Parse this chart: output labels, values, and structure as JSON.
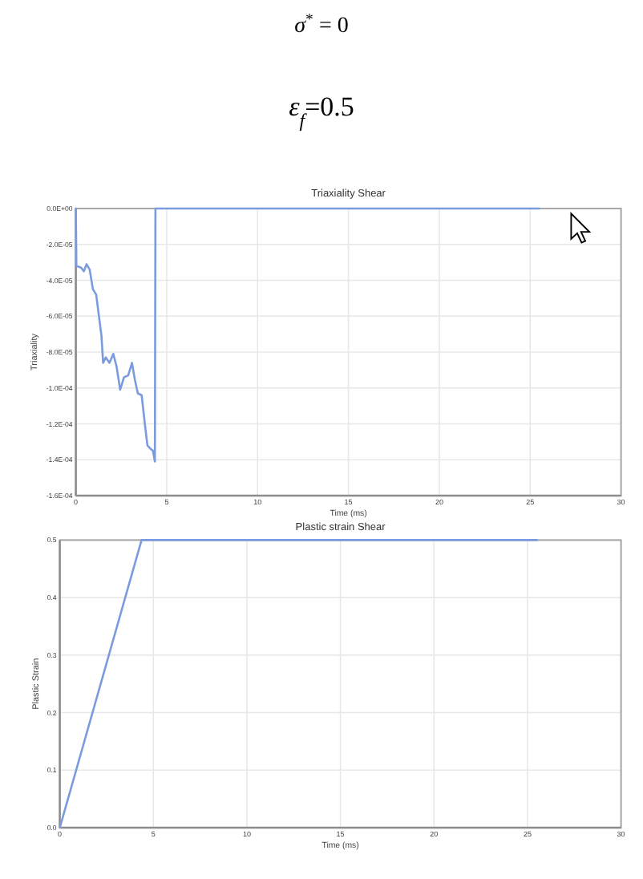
{
  "chart_data": [
    {
      "type": "line",
      "title": "Triaxiality Shear",
      "xlabel": "Time (ms)",
      "ylabel": "Triaxiality",
      "annotations": [
        "σ$^{*}$ = 0",
        "ε$_{f}$=0.5"
      ],
      "x": [
        0,
        0.03,
        0.29,
        0.44,
        0.59,
        0.76,
        0.94,
        1.12,
        1.41,
        1.5,
        1.65,
        1.85,
        2.06,
        2.24,
        2.44,
        2.65,
        2.88,
        3.09,
        3.24,
        3.41,
        3.62,
        3.82,
        3.94,
        4.12,
        4.24,
        4.35,
        4.38,
        25.5
      ],
      "series": [
        {
          "color": "#7b9be0",
          "values": [
            0,
            -3.2e-05,
            -3.3e-05,
            -3.5e-05,
            -3.1e-05,
            -3.4e-05,
            -4.5e-05,
            -4.8e-05,
            -7.1e-05,
            -8.6e-05,
            -8.3e-05,
            -8.6e-05,
            -8.1e-05,
            -8.8e-05,
            -0.000101,
            -9.4e-05,
            -9.3e-05,
            -8.6e-05,
            -9.5e-05,
            -0.000103,
            -0.000104,
            -0.000122,
            -0.000132,
            -0.000134,
            -0.000135,
            -0.000141,
            0,
            0
          ]
        }
      ],
      "xlim": [
        0,
        30
      ],
      "ylim": [
        -0.00016,
        0
      ],
      "xticks": [
        0,
        5,
        10,
        15,
        20,
        25,
        30
      ],
      "yticks": [
        {
          "value": 0,
          "label": "0.0E+00"
        },
        {
          "value": -2e-05,
          "label": "-2.0E-05"
        },
        {
          "value": -4e-05,
          "label": "-4.0E-05"
        },
        {
          "value": -6e-05,
          "label": "-6.0E-05"
        },
        {
          "value": -8e-05,
          "label": "-8.0E-05"
        },
        {
          "value": -0.0001,
          "label": "-1.0E-04"
        },
        {
          "value": -0.00012,
          "label": "-1.2E-04"
        },
        {
          "value": -0.00014,
          "label": "-1.4E-04"
        },
        {
          "value": -0.00016,
          "label": "-1.6E-04"
        }
      ],
      "grid": true
    },
    {
      "type": "line",
      "title": "Plastic strain Shear",
      "xlabel": "Time (ms)",
      "ylabel": "Plastic Strain",
      "x": [
        0,
        4.37,
        25.5
      ],
      "series": [
        {
          "color": "#7b9be0",
          "values": [
            0,
            0.5,
            0.5
          ]
        }
      ],
      "xlim": [
        0,
        30
      ],
      "ylim": [
        0,
        0.5
      ],
      "xticks": [
        0,
        5,
        10,
        15,
        20,
        25,
        30
      ],
      "yticks": [
        {
          "value": 0,
          "label": "0.0"
        },
        0.1,
        0.2,
        0.3,
        0.4,
        0.5
      ],
      "grid": true
    }
  ]
}
